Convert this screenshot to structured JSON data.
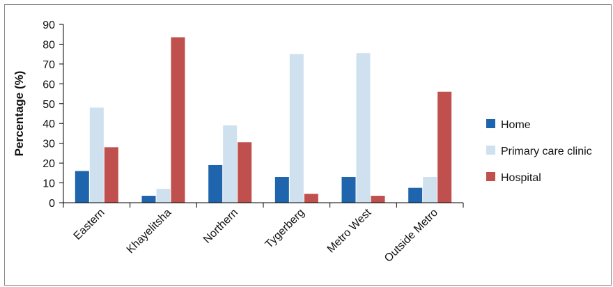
{
  "chart_data": {
    "type": "bar",
    "title": "",
    "xlabel": "",
    "ylabel": "Percentage (%)",
    "ylim": [
      0,
      90
    ],
    "yticks": [
      0,
      10,
      20,
      30,
      40,
      50,
      60,
      70,
      80,
      90
    ],
    "grid": false,
    "legend_position": "right",
    "categories": [
      "Eastern",
      "Khayelitsha",
      "Northern",
      "Tygerberg",
      "Metro West",
      "Outside Metro"
    ],
    "series": [
      {
        "name": "Home",
        "color": "#1f65ad",
        "values": [
          16,
          3.5,
          19,
          13,
          13,
          7.5
        ]
      },
      {
        "name": "Primary care clinic",
        "color": "#cfe0ef",
        "values": [
          48,
          7,
          39,
          75,
          75.5,
          13
        ]
      },
      {
        "name": "Hospital",
        "color": "#c0504d",
        "values": [
          28,
          83.5,
          30.5,
          4.5,
          3.5,
          56
        ]
      }
    ]
  }
}
